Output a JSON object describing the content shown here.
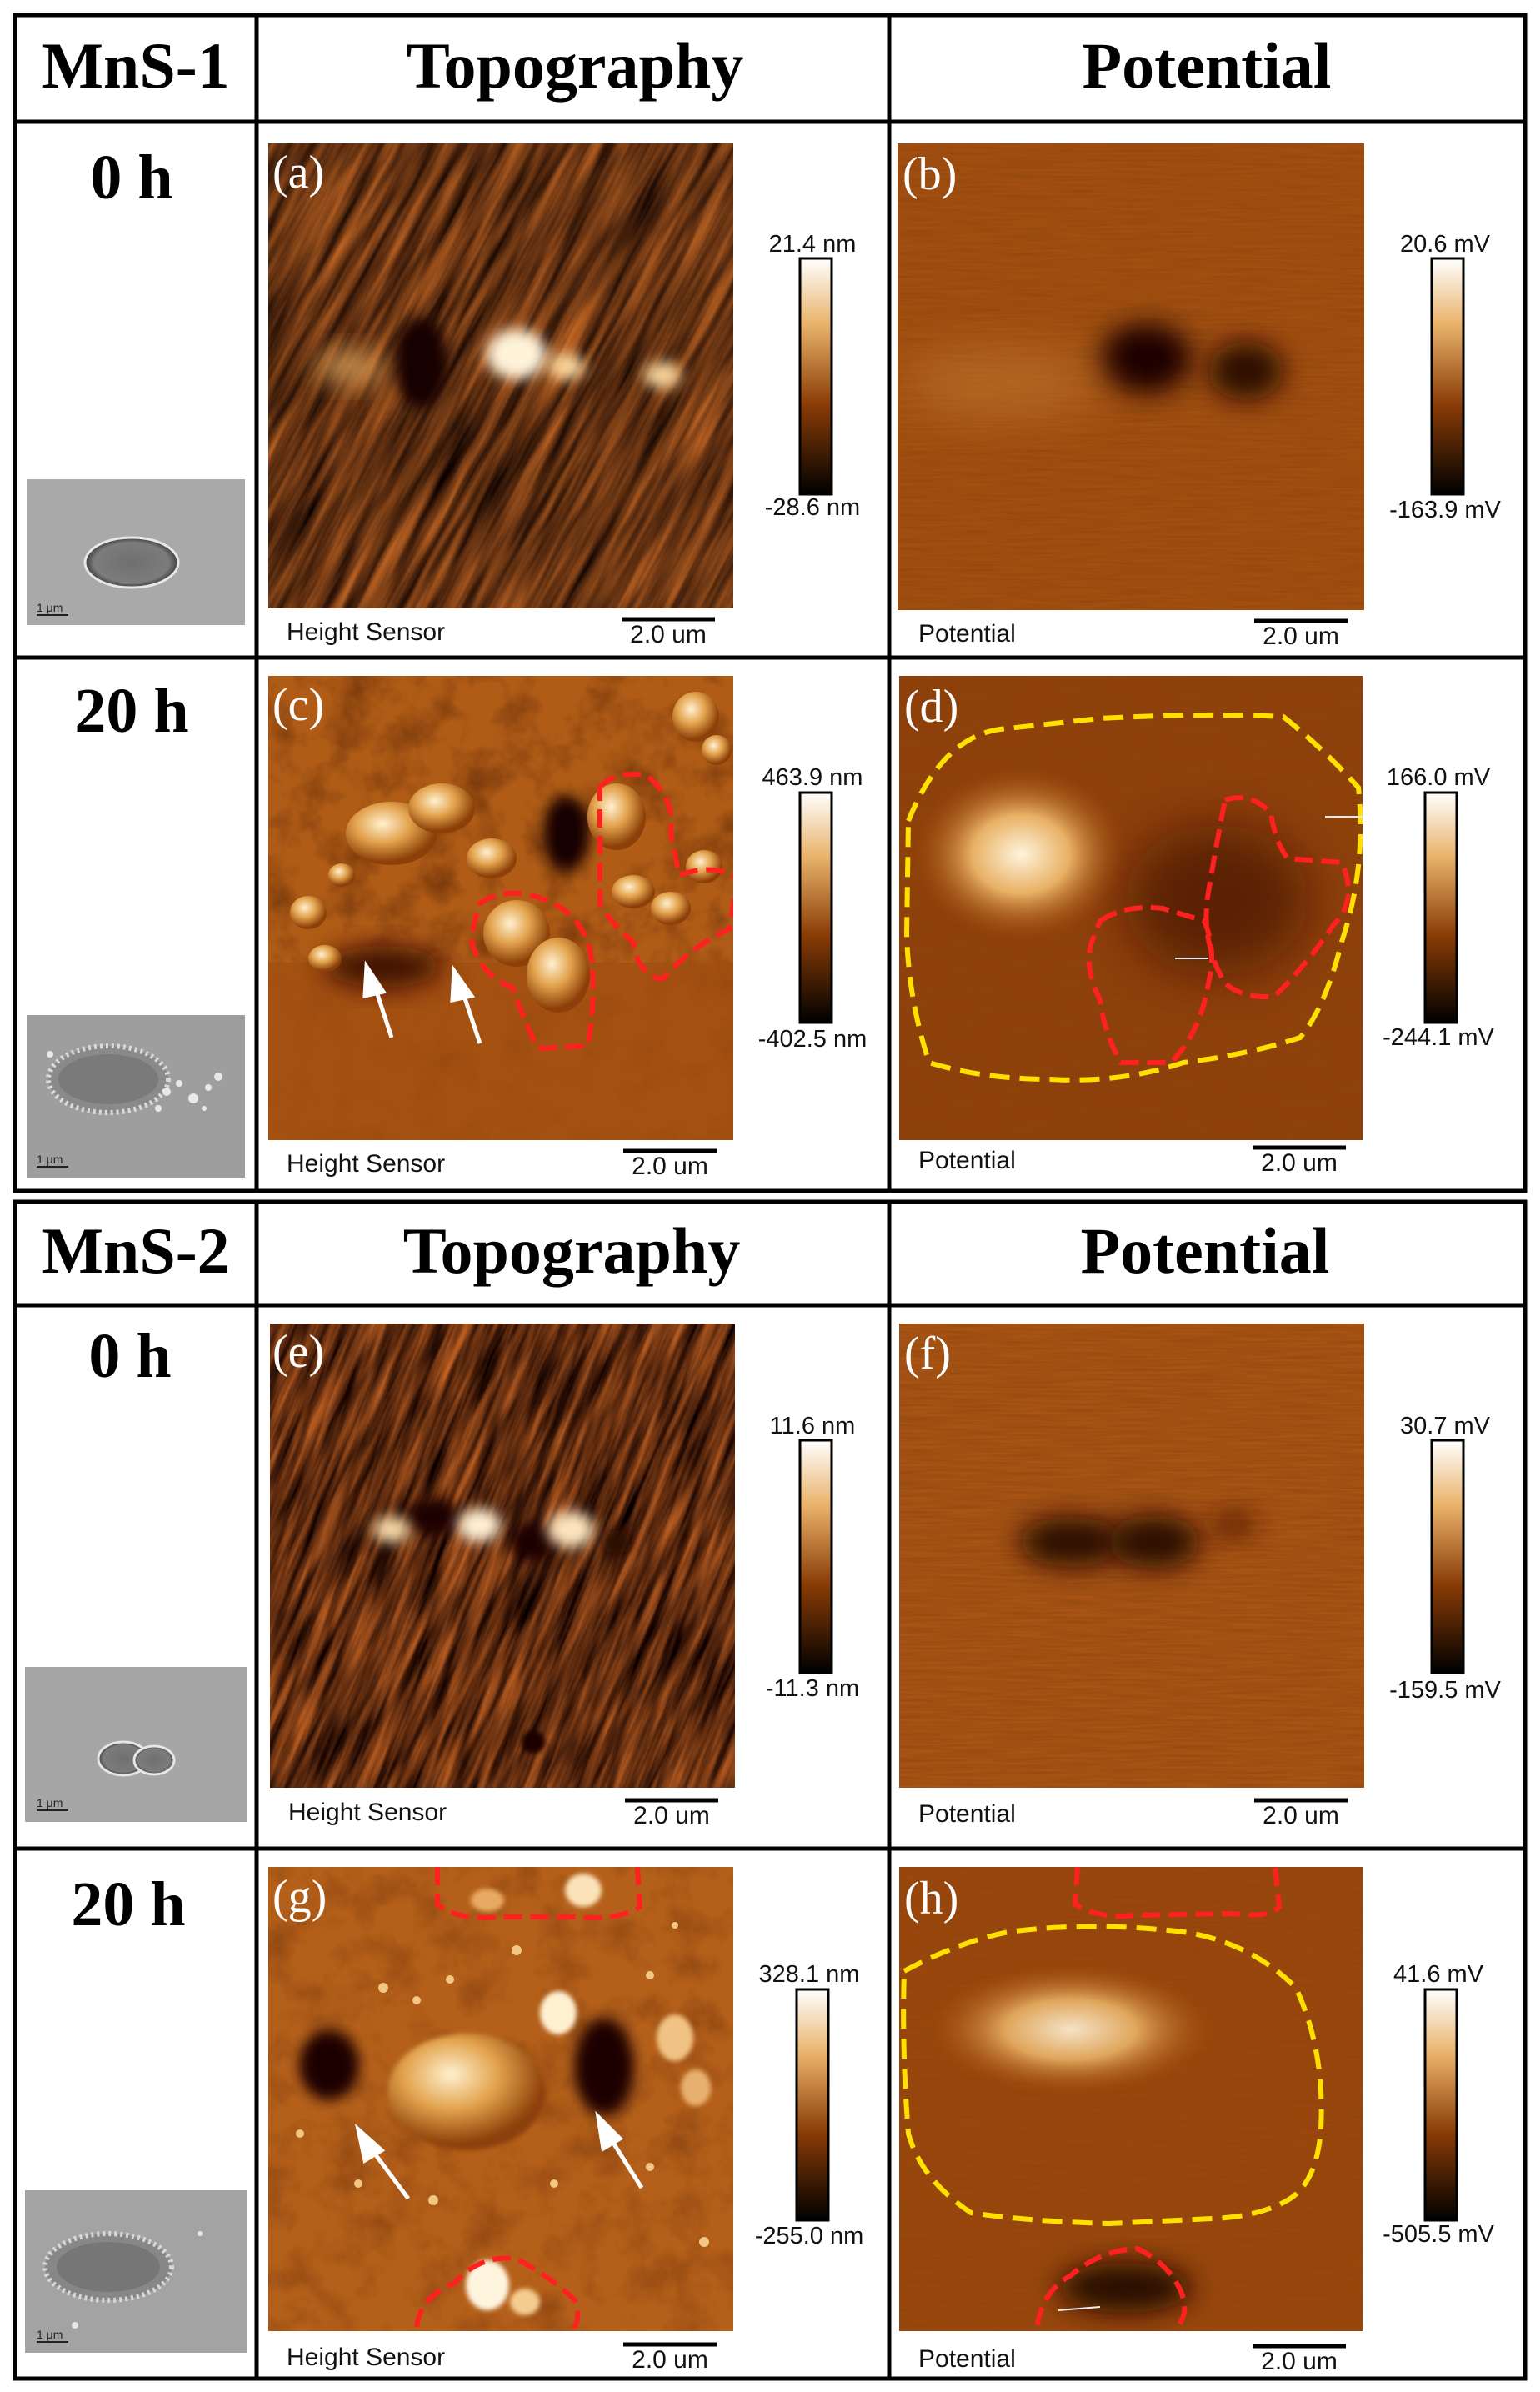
{
  "sections": [
    {
      "sample": "MnS-1",
      "col_topography": "Topography",
      "col_potential": "Potential",
      "rows": [
        {
          "time": "0 h",
          "topo": {
            "letter": "(a)",
            "caption": "Height Sensor",
            "scale": "2.0 um",
            "max": "21.4 nm",
            "min": "-28.6 nm"
          },
          "pot": {
            "letter": "(b)",
            "caption": "Potential",
            "scale": "2.0 um",
            "max": "20.6 mV",
            "min": "-163.9 mV"
          }
        },
        {
          "time": "20 h",
          "topo": {
            "letter": "(c)",
            "caption": "Height Sensor",
            "scale": "2.0 um",
            "max": "463.9 nm",
            "min": "-402.5 nm"
          },
          "pot": {
            "letter": "(d)",
            "caption": "Potential",
            "scale": "2.0 um",
            "max": "166.0 mV",
            "min": "-244.1 mV"
          }
        }
      ]
    },
    {
      "sample": "MnS-2",
      "col_topography": "Topography",
      "col_potential": "Potential",
      "rows": [
        {
          "time": "0 h",
          "topo": {
            "letter": "(e)",
            "caption": "Height Sensor",
            "scale": "2.0 um",
            "max": "11.6 nm",
            "min": "-11.3 nm"
          },
          "pot": {
            "letter": "(f)",
            "caption": "Potential",
            "scale": "2.0 um",
            "max": "30.7 mV",
            "min": "-159.5 mV"
          }
        },
        {
          "time": "20 h",
          "topo": {
            "letter": "(g)",
            "caption": "Height Sensor",
            "scale": "2.0 um",
            "max": "328.1 nm",
            "min": "-255.0 nm"
          },
          "pot": {
            "letter": "(h)",
            "caption": "Potential",
            "scale": "2.0 um",
            "max": "41.6 mV",
            "min": "-505.5 mV"
          }
        }
      ]
    }
  ],
  "sem_scale": "1 μm",
  "colors": {
    "afm_dark": "#1a0600",
    "afm_mid": "#8a3c06",
    "afm_light": "#e6a24a",
    "afm_bright": "#fff3dc",
    "outline_red": "#ff2020",
    "outline_yellow": "#ffe000",
    "sem_gray": "#a8a8a8"
  }
}
